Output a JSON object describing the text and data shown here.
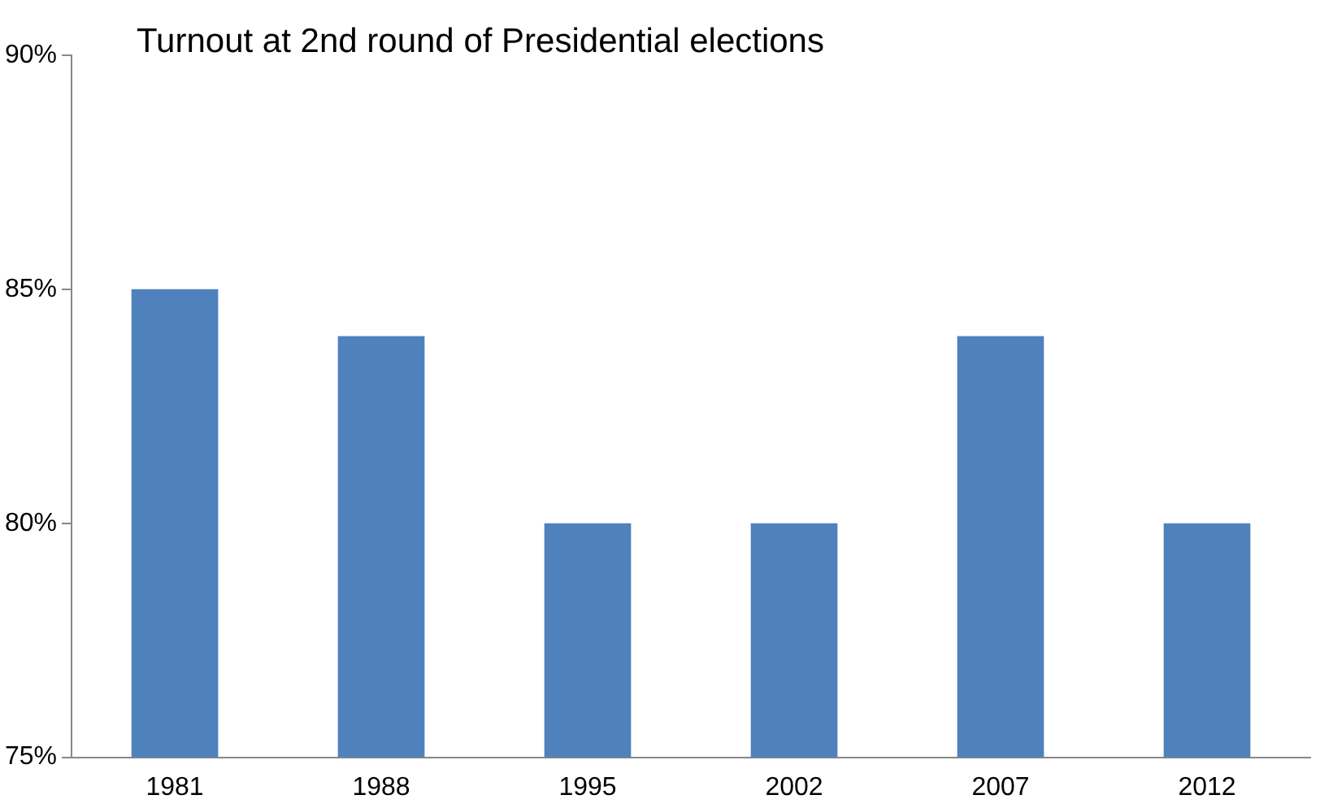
{
  "chart_data": {
    "type": "bar",
    "title": "Turnout at 2nd round of Presidential elections",
    "categories": [
      "1981",
      "1988",
      "1995",
      "2002",
      "2007",
      "2012"
    ],
    "values": [
      85,
      84,
      80,
      80,
      84,
      80
    ],
    "color": "#4f81bd",
    "ylim": [
      75,
      90
    ],
    "yticks": [
      {
        "value": 75,
        "label": "75%"
      },
      {
        "value": 80,
        "label": "80%"
      },
      {
        "value": 85,
        "label": "85%"
      },
      {
        "value": 90,
        "label": "90%"
      }
    ],
    "grid": false,
    "legend": false
  }
}
